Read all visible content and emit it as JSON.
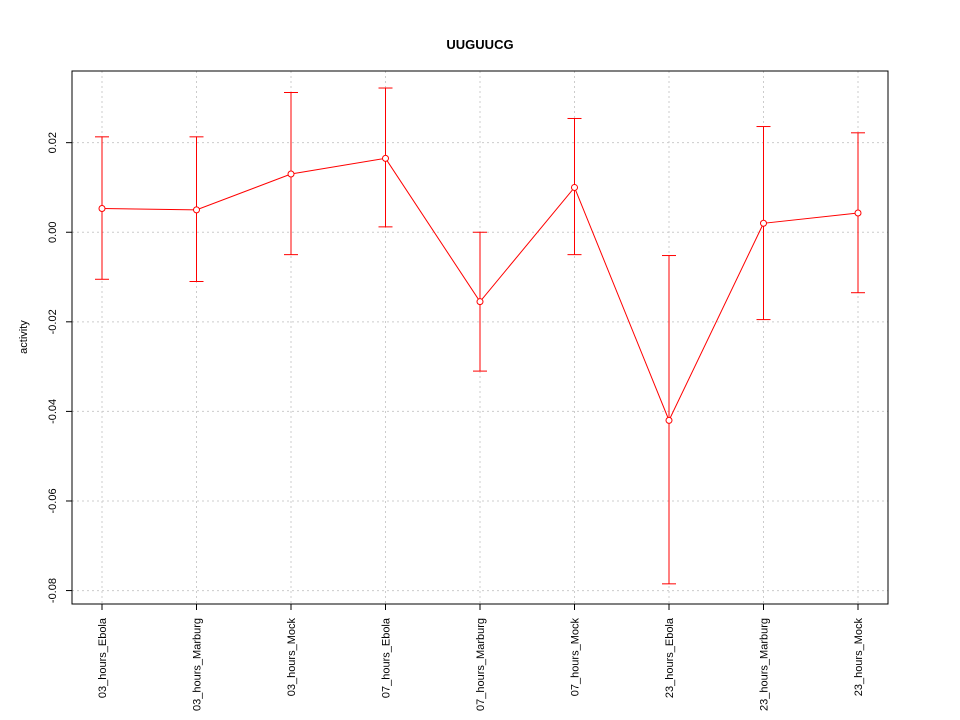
{
  "chart_data": {
    "type": "line",
    "title": "UUGUUCG",
    "xlabel": "",
    "ylabel": "activity",
    "categories": [
      "03_hours_Ebola",
      "03_hours_Marburg",
      "03_hours_Mock",
      "07_hours_Ebola",
      "07_hours_Marburg",
      "07_hours_Mock",
      "23_hours_Ebola",
      "23_hours_Marburg",
      "23_hours_Mock"
    ],
    "series": [
      {
        "values": [
          0.0053,
          0.005,
          0.013,
          0.0165,
          -0.0155,
          0.01,
          -0.042,
          0.002,
          0.0043
        ],
        "error_low": [
          -0.0105,
          -0.011,
          -0.005,
          0.0012,
          -0.031,
          -0.005,
          -0.0785,
          -0.0195,
          -0.0135
        ],
        "error_high": [
          0.0213,
          0.0213,
          0.0312,
          0.0322,
          0.0,
          0.0254,
          -0.0052,
          0.0236,
          0.0222
        ]
      }
    ],
    "ylim": [
      -0.083,
      0.036
    ],
    "yticks": [
      -0.08,
      -0.06,
      -0.04,
      -0.02,
      0.0,
      0.02
    ],
    "ytick_labels": [
      "-0.08",
      "-0.06",
      "-0.04",
      "-0.02",
      "0.00",
      "0.02"
    ],
    "grid": true,
    "series_color": "#ff0000",
    "grid_color": "#cccccc"
  }
}
